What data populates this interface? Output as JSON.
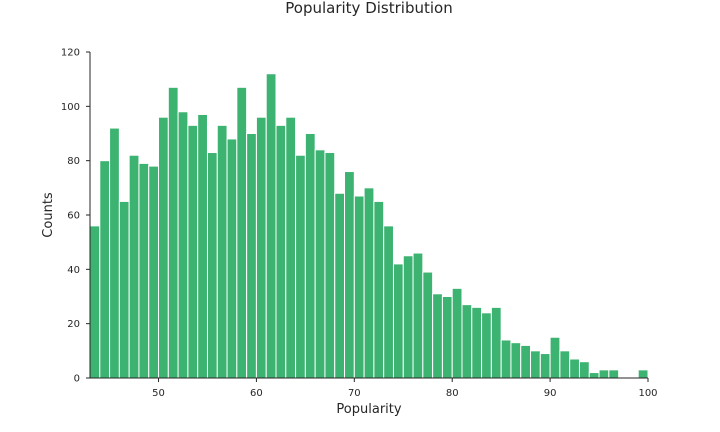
{
  "chart_data": {
    "type": "bar",
    "title": "Popularity Distribution",
    "xlabel": "Popularity",
    "ylabel": "Counts",
    "xlim": [
      43,
      100
    ],
    "ylim": [
      0,
      120
    ],
    "xticks": [
      50,
      60,
      70,
      80,
      90,
      100
    ],
    "yticks": [
      0,
      20,
      40,
      60,
      80,
      100,
      120
    ],
    "bin_width": 1,
    "bins": [
      43,
      44,
      45,
      46,
      47,
      48,
      49,
      50,
      51,
      52,
      53,
      54,
      55,
      56,
      57,
      58,
      59,
      60,
      61,
      62,
      63,
      64,
      65,
      66,
      67,
      68,
      69,
      70,
      71,
      72,
      73,
      74,
      75,
      76,
      77,
      78,
      79,
      80,
      81,
      82,
      83,
      84,
      85,
      86,
      87,
      88,
      89,
      90,
      91,
      92,
      93,
      94,
      95,
      96,
      97,
      98,
      99
    ],
    "values": [
      56,
      80,
      92,
      65,
      82,
      79,
      78,
      96,
      107,
      98,
      93,
      97,
      83,
      93,
      88,
      107,
      90,
      96,
      112,
      93,
      96,
      82,
      90,
      84,
      83,
      68,
      76,
      67,
      70,
      65,
      56,
      42,
      45,
      46,
      39,
      31,
      30,
      33,
      27,
      26,
      24,
      26,
      14,
      13,
      12,
      10,
      9,
      15,
      10,
      7,
      6,
      2,
      3,
      3,
      0,
      0,
      3
    ],
    "color": "#3cb371",
    "grid": false
  }
}
